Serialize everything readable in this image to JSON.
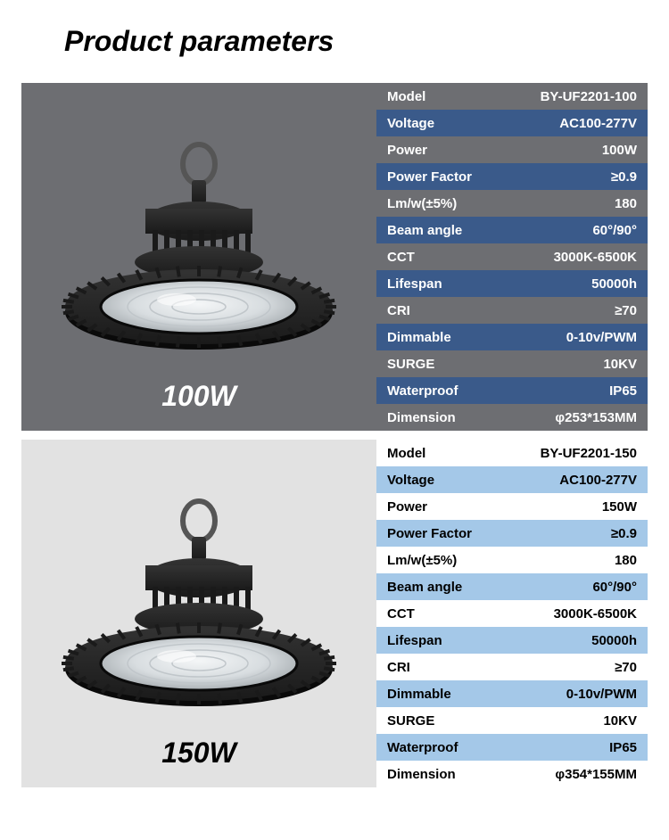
{
  "title": "Product parameters",
  "blocks": [
    {
      "wattage": "100W",
      "style": "b1",
      "rows": [
        {
          "label": "Model",
          "val": "BY-UF2201-100"
        },
        {
          "label": "Voltage",
          "val": "AC100-277V"
        },
        {
          "label": "Power",
          "val": "100W"
        },
        {
          "label": "Power Factor",
          "val": "≥0.9"
        },
        {
          "label": "Lm/w(±5%)",
          "val": "180"
        },
        {
          "label": "Beam angle",
          "val": "60°/90°"
        },
        {
          "label": "CCT",
          "val": "3000K-6500K"
        },
        {
          "label": "Lifespan",
          "val": "50000h"
        },
        {
          "label": "CRI",
          "val": "≥70"
        },
        {
          "label": "Dimmable",
          "val": "0-10v/PWM"
        },
        {
          "label": "SURGE",
          "val": "10KV"
        },
        {
          "label": "Waterproof",
          "val": "IP65"
        },
        {
          "label": "Dimension",
          "val": "φ253*153MM"
        }
      ]
    },
    {
      "wattage": "150W",
      "style": "b2",
      "rows": [
        {
          "label": "Model",
          "val": "BY-UF2201-150"
        },
        {
          "label": "Voltage",
          "val": "AC100-277V"
        },
        {
          "label": "Power",
          "val": "150W"
        },
        {
          "label": "Power Factor",
          "val": "≥0.9"
        },
        {
          "label": "Lm/w(±5%)",
          "val": "180"
        },
        {
          "label": "Beam angle",
          "val": "60°/90°"
        },
        {
          "label": "CCT",
          "val": "3000K-6500K"
        },
        {
          "label": "Lifespan",
          "val": "50000h"
        },
        {
          "label": "CRI",
          "val": "≥70"
        },
        {
          "label": "Dimmable",
          "val": "0-10v/PWM"
        },
        {
          "label": "SURGE",
          "val": "10KV"
        },
        {
          "label": "Waterproof",
          "val": "IP65"
        },
        {
          "label": "Dimension",
          "val": "φ354*155MM"
        }
      ]
    }
  ],
  "lamp_svg": {
    "body": "#1a1a1a",
    "body_hl": "#333",
    "lens": "#d8dde0",
    "lens_hl": "#f4f6f7",
    "rim": "#0a0a0a",
    "ring": "#555"
  }
}
